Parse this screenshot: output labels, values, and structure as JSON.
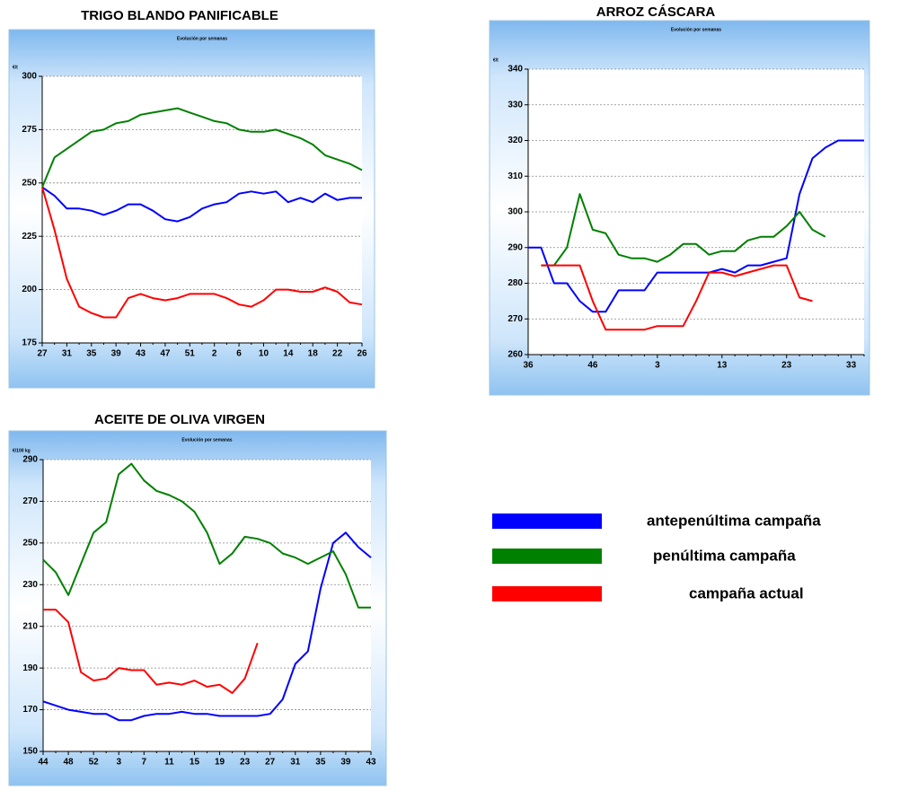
{
  "chart_data": [
    {
      "type": "line",
      "title": "TRIGO BLANDO PANIFICABLE",
      "subtitle": "Evolución por semanas",
      "y_unit": "€/t",
      "categories": [
        "27",
        null,
        "31",
        null,
        "35",
        null,
        "39",
        null,
        "43",
        null,
        "47",
        null,
        "51",
        null,
        "2",
        null,
        "6",
        null,
        "10",
        null,
        "14",
        null,
        "18",
        null,
        "22",
        null,
        "26"
      ],
      "series": [
        {
          "name": "antepenúltima campaña",
          "color": "#0000ff",
          "values": [
            248,
            244,
            238,
            238,
            237,
            235,
            237,
            240,
            240,
            237,
            233,
            232,
            234,
            238,
            240,
            241,
            245,
            246,
            245,
            246,
            241,
            243,
            241,
            245,
            242,
            243,
            243
          ]
        },
        {
          "name": "penúltima campaña",
          "color": "#008000",
          "values": [
            248,
            262,
            266,
            270,
            274,
            275,
            278,
            279,
            282,
            283,
            284,
            285,
            283,
            281,
            279,
            278,
            275,
            274,
            274,
            275,
            273,
            271,
            268,
            263,
            261,
            259,
            256
          ]
        },
        {
          "name": "campaña actual",
          "color": "#ff0000",
          "values": [
            248,
            228,
            205,
            192,
            189,
            187,
            187,
            196,
            198,
            196,
            195,
            196,
            198,
            198,
            198,
            196,
            193,
            192,
            195,
            200,
            200,
            199,
            199,
            201,
            199,
            194,
            193
          ]
        }
      ],
      "ylim": [
        175,
        300
      ],
      "yticks": [
        175,
        200,
        225,
        250,
        275,
        300
      ],
      "grid": true
    },
    {
      "type": "line",
      "title": "ARROZ CÁSCARA",
      "subtitle": "Evolución por semanas",
      "y_unit": "€/t",
      "categories": [
        "36",
        null,
        null,
        null,
        null,
        "46",
        null,
        null,
        null,
        null,
        "3",
        null,
        null,
        null,
        null,
        "13",
        null,
        null,
        null,
        null,
        "23",
        null,
        null,
        null,
        null,
        "33",
        null
      ],
      "series": [
        {
          "name": "antepenúltima campaña",
          "color": "#0000ff",
          "values": [
            290,
            290,
            280,
            280,
            275,
            272,
            272,
            278,
            278,
            278,
            283,
            283,
            283,
            283,
            283,
            284,
            283,
            285,
            285,
            286,
            287,
            305,
            315,
            318,
            320,
            320,
            320
          ]
        },
        {
          "name": "penúltima campaña",
          "color": "#008000",
          "values": [
            null,
            285,
            285,
            290,
            305,
            295,
            294,
            288,
            287,
            287,
            286,
            288,
            291,
            291,
            288,
            289,
            289,
            292,
            293,
            293,
            296,
            300,
            295,
            293,
            null,
            null,
            null
          ]
        },
        {
          "name": "campaña actual",
          "color": "#ff0000",
          "values": [
            null,
            285,
            285,
            285,
            285,
            275,
            267,
            267,
            267,
            267,
            268,
            268,
            268,
            275,
            283,
            283,
            282,
            283,
            284,
            285,
            285,
            276,
            275,
            null,
            null,
            null,
            null
          ]
        }
      ],
      "ylim": [
        260,
        340
      ],
      "yticks": [
        260,
        270,
        280,
        290,
        300,
        310,
        320,
        330,
        340
      ],
      "grid": true
    },
    {
      "type": "line",
      "title": "ACEITE DE OLIVA VIRGEN",
      "subtitle": "Evolución por semanas",
      "y_unit": "€/100 kg",
      "categories": [
        "44",
        null,
        "48",
        null,
        "52",
        null,
        "3",
        null,
        "7",
        null,
        "11",
        null,
        "15",
        null,
        "19",
        null,
        "23",
        null,
        "27",
        null,
        "31",
        null,
        "35",
        null,
        "39",
        null,
        "43"
      ],
      "series": [
        {
          "name": "antepenúltima campaña",
          "color": "#0000ff",
          "values": [
            174,
            172,
            170,
            169,
            168,
            168,
            165,
            165,
            167,
            168,
            168,
            169,
            168,
            168,
            167,
            167,
            167,
            167,
            168,
            175,
            192,
            198,
            228,
            250,
            255,
            248,
            243
          ]
        },
        {
          "name": "penúltima campaña",
          "color": "#008000",
          "values": [
            242,
            236,
            225,
            240,
            255,
            260,
            283,
            288,
            280,
            275,
            273,
            270,
            265,
            255,
            240,
            245,
            253,
            252,
            250,
            245,
            243,
            240,
            243,
            246,
            235,
            219,
            219
          ]
        },
        {
          "name": "campaña actual",
          "color": "#ff0000",
          "values": [
            218,
            218,
            212,
            188,
            184,
            185,
            190,
            189,
            189,
            182,
            183,
            182,
            184,
            181,
            182,
            178,
            185,
            202,
            null,
            null,
            null,
            null,
            null,
            null,
            null,
            null,
            null
          ]
        }
      ],
      "ylim": [
        150,
        290
      ],
      "yticks": [
        150,
        170,
        190,
        210,
        230,
        250,
        270,
        290
      ],
      "grid": true
    }
  ]
}
